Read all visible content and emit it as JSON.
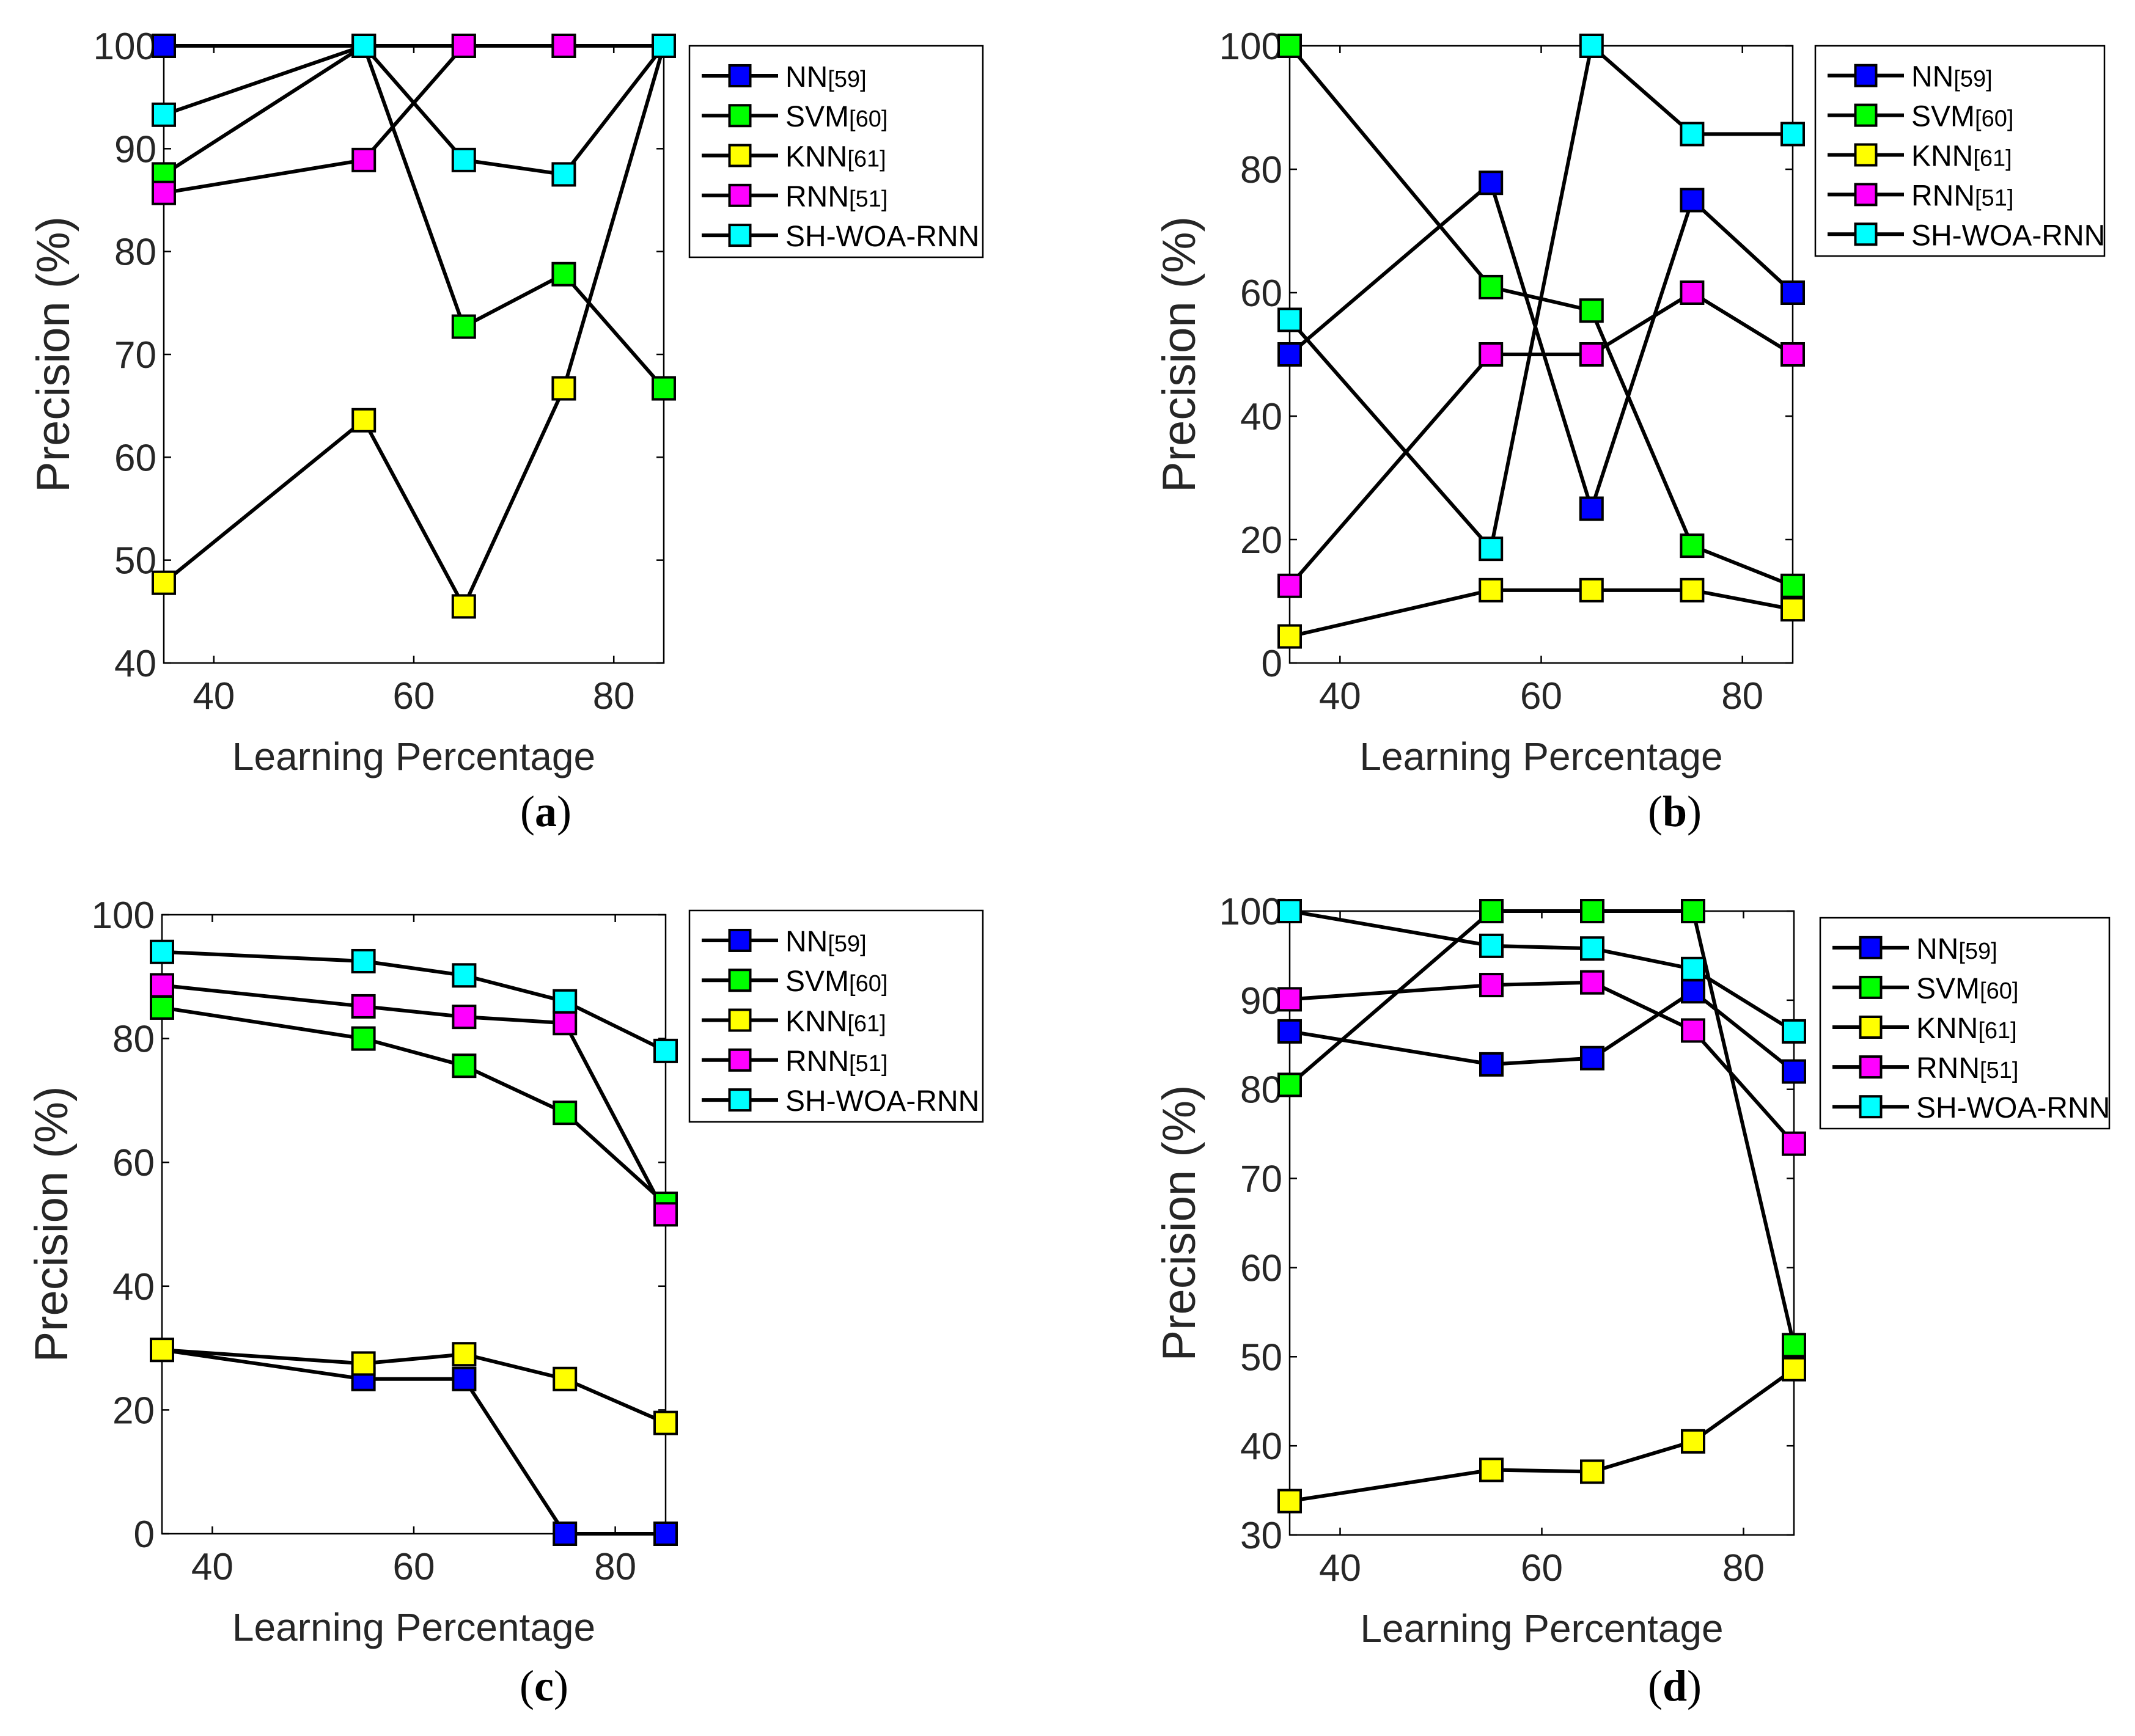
{
  "figure": {
    "panels": [
      "a",
      "b",
      "c",
      "d"
    ]
  },
  "legend_entries": [
    {
      "name": "NN",
      "ref": "[59]",
      "color": "#0000ff"
    },
    {
      "name": "SVM",
      "ref": "[60]",
      "color": "#00ff00"
    },
    {
      "name": "KNN",
      "ref": "[61]",
      "color": "#ffff00"
    },
    {
      "name": "RNN",
      "ref": "[51]",
      "color": "#ff00ff"
    },
    {
      "name": "SH-WOA-RNN",
      "ref": "",
      "color": "#00ffff"
    }
  ],
  "chart_data": [
    {
      "id": "a",
      "caption_open": "(",
      "caption_letter": "a",
      "caption_close": ")",
      "type": "line",
      "xlabel": "Learning Percentage",
      "ylabel": "Precision (%)",
      "xlim": [
        35,
        85
      ],
      "ylim": [
        40,
        100
      ],
      "x": [
        35,
        55,
        65,
        75,
        85
      ],
      "xticks": [
        40,
        60,
        80
      ],
      "yticks": [
        40,
        50,
        60,
        70,
        80,
        90,
        100
      ],
      "legend_position": "top-right (outside)",
      "series": [
        {
          "name": "NN[59]",
          "values": [
            100,
            100,
            100,
            100,
            100
          ]
        },
        {
          "name": "SVM[60]",
          "values": [
            87.5,
            100,
            72.7,
            77.8,
            66.7
          ]
        },
        {
          "name": "KNN[61]",
          "values": [
            47.8,
            63.6,
            45.5,
            66.7,
            100
          ]
        },
        {
          "name": "RNN[51]",
          "values": [
            85.7,
            88.9,
            100,
            100,
            100
          ]
        },
        {
          "name": "SH-WOA-RNN",
          "values": [
            93.3,
            100,
            88.9,
            87.5,
            100
          ]
        }
      ]
    },
    {
      "id": "b",
      "caption_open": "(",
      "caption_letter": "b",
      "caption_close": ")",
      "type": "line",
      "xlabel": "Learning Percentage",
      "ylabel": "Precision (%)",
      "xlim": [
        35,
        85
      ],
      "ylim": [
        0,
        100
      ],
      "x": [
        35,
        55,
        65,
        75,
        85
      ],
      "xticks": [
        40,
        60,
        80
      ],
      "yticks": [
        0,
        20,
        40,
        60,
        80,
        100
      ],
      "legend_position": "top-right (outside)",
      "series": [
        {
          "name": "NN[59]",
          "values": [
            50,
            77.8,
            25,
            75,
            60
          ]
        },
        {
          "name": "SVM[60]",
          "values": [
            100,
            60.9,
            57.1,
            19,
            12.5
          ]
        },
        {
          "name": "KNN[61]",
          "values": [
            4.3,
            11.8,
            11.8,
            11.8,
            8.7
          ]
        },
        {
          "name": "RNN[51]",
          "values": [
            12.5,
            50,
            50,
            60,
            50
          ]
        },
        {
          "name": "SH-WOA-RNN",
          "values": [
            55.6,
            18.5,
            100,
            85.7,
            85.7
          ]
        }
      ]
    },
    {
      "id": "c",
      "caption_open": "(",
      "caption_letter": "c",
      "caption_close": ")",
      "type": "line",
      "xlabel": "Learning Percentage",
      "ylabel": "Precision (%)",
      "xlim": [
        35,
        85
      ],
      "ylim": [
        0,
        100
      ],
      "x": [
        35,
        55,
        65,
        75,
        85
      ],
      "xticks": [
        40,
        60,
        80
      ],
      "yticks": [
        0,
        20,
        40,
        60,
        80,
        100
      ],
      "legend_position": "top-right (outside)",
      "series": [
        {
          "name": "NN[59]",
          "values": [
            29.7,
            25,
            25,
            0,
            0
          ]
        },
        {
          "name": "SVM[60]",
          "values": [
            85,
            80,
            75.6,
            68,
            53.3
          ]
        },
        {
          "name": "KNN[61]",
          "values": [
            29.7,
            27.5,
            29,
            25,
            17.9
          ]
        },
        {
          "name": "RNN[51]",
          "values": [
            88.6,
            85.2,
            83.5,
            82.5,
            51.6
          ]
        },
        {
          "name": "SH-WOA-RNN",
          "values": [
            94,
            92.5,
            90.2,
            86,
            78
          ]
        }
      ]
    },
    {
      "id": "d",
      "caption_open": "(",
      "caption_letter": "d",
      "caption_close": ")",
      "type": "line",
      "xlabel": "Learning Percentage",
      "ylabel": "Precision (%)",
      "xlim": [
        35,
        85
      ],
      "ylim": [
        30,
        100
      ],
      "x": [
        35,
        55,
        65,
        75,
        85
      ],
      "xticks": [
        40,
        60,
        80
      ],
      "yticks": [
        30,
        40,
        50,
        60,
        70,
        80,
        90,
        100
      ],
      "legend_position": "top-right (outside)",
      "series": [
        {
          "name": "NN[59]",
          "values": [
            86.5,
            82.8,
            83.5,
            91,
            82
          ]
        },
        {
          "name": "SVM[60]",
          "values": [
            80.5,
            100,
            100,
            100,
            51.3
          ]
        },
        {
          "name": "KNN[61]",
          "values": [
            33.8,
            37.3,
            37.1,
            40.5,
            48.6
          ]
        },
        {
          "name": "RNN[51]",
          "values": [
            90.1,
            91.7,
            92,
            86.6,
            73.9
          ]
        },
        {
          "name": "SH-WOA-RNN",
          "values": [
            100,
            96.1,
            95.8,
            93.5,
            86.5
          ]
        }
      ]
    }
  ]
}
